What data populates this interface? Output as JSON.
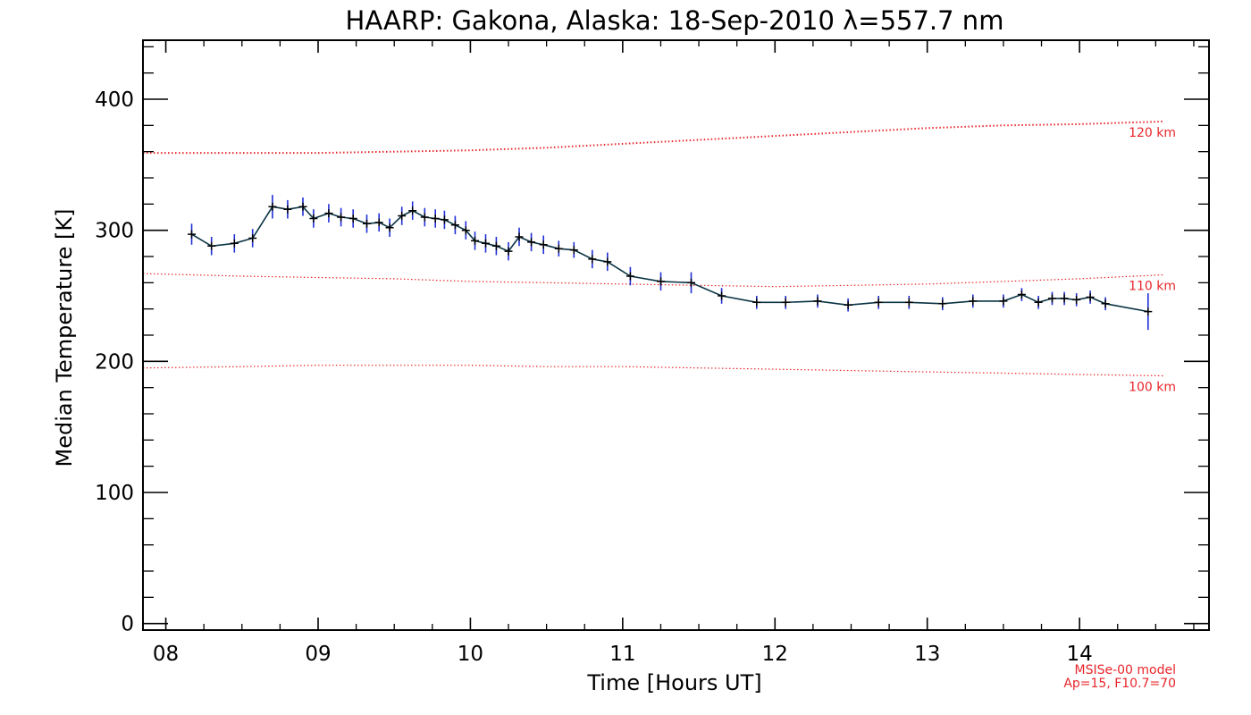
{
  "chart_data": {
    "type": "line",
    "title": "HAARP: Gakona,  Alaska: 18-Sep-2010 λ=557.7 nm",
    "xlabel": "Time [Hours UT]",
    "ylabel": "Median Temperature [K]",
    "xlim": [
      7.85,
      14.85
    ],
    "ylim": [
      -5,
      445
    ],
    "x_ticks": [
      "08",
      "09",
      "10",
      "11",
      "12",
      "13",
      "14"
    ],
    "x_tick_values": [
      8,
      9,
      10,
      11,
      12,
      13,
      14
    ],
    "y_ticks": [
      "0",
      "100",
      "200",
      "300",
      "400"
    ],
    "y_tick_values": [
      0,
      100,
      200,
      300,
      400
    ],
    "grid": false,
    "series": [
      {
        "name": "",
        "color": "#0a3344",
        "errorbar_color": "#1f2fd6",
        "marker": "+",
        "x": [
          8.17,
          8.3,
          8.45,
          8.57,
          8.7,
          8.8,
          8.9,
          8.97,
          9.07,
          9.15,
          9.23,
          9.32,
          9.4,
          9.47,
          9.55,
          9.62,
          9.7,
          9.77,
          9.83,
          9.9,
          9.97,
          10.03,
          10.1,
          10.17,
          10.25,
          10.32,
          10.4,
          10.48,
          10.58,
          10.68,
          10.8,
          10.9,
          11.05,
          11.25,
          11.45,
          11.65,
          11.88,
          12.07,
          12.28,
          12.48,
          12.68,
          12.88,
          13.1,
          13.3,
          13.5,
          13.62,
          13.73,
          13.82,
          13.9,
          13.98,
          14.07,
          14.17,
          14.45
        ],
        "y": [
          297,
          288,
          290,
          294,
          318,
          316,
          318,
          309,
          313,
          310,
          309,
          305,
          306,
          302,
          311,
          315,
          310,
          309,
          308,
          304,
          300,
          292,
          290,
          288,
          284,
          295,
          291,
          289,
          286,
          285,
          278,
          276,
          265,
          261,
          260,
          250,
          245,
          245,
          246,
          243,
          245,
          245,
          244,
          246,
          246,
          251,
          245,
          248,
          248,
          247,
          249,
          244,
          238
        ],
        "err": [
          8,
          7,
          7,
          7,
          9,
          7,
          7,
          7,
          7,
          7,
          7,
          7,
          7,
          7,
          7,
          7,
          7,
          7,
          7,
          7,
          7,
          7,
          7,
          7,
          7,
          7,
          7,
          7,
          6,
          6,
          7,
          7,
          7,
          7,
          8,
          6,
          5,
          5,
          5,
          5,
          5,
          5,
          5,
          5,
          5,
          5,
          5,
          5,
          5,
          5,
          5,
          5,
          14
        ]
      }
    ],
    "model_curves": [
      {
        "label": "120 km",
        "color": "#e8262b",
        "x": [
          7.85,
          8.5,
          9.0,
          9.5,
          10.0,
          10.5,
          11.0,
          11.5,
          12.0,
          12.5,
          13.0,
          13.5,
          14.0,
          14.55
        ],
        "y": [
          359,
          359,
          359,
          360,
          361,
          363,
          366,
          369,
          372,
          375,
          378,
          380,
          381,
          383
        ]
      },
      {
        "label": "110 km",
        "color": "#e8262b",
        "x": [
          7.85,
          8.5,
          9.0,
          9.5,
          10.0,
          10.5,
          11.0,
          11.5,
          12.0,
          12.5,
          13.0,
          13.5,
          14.0,
          14.55
        ],
        "y": [
          267,
          265,
          264,
          263,
          261,
          260,
          259,
          258,
          257,
          258,
          259,
          261,
          263,
          266
        ]
      },
      {
        "label": "100 km",
        "color": "#e8262b",
        "x": [
          7.85,
          8.5,
          9.0,
          9.5,
          10.0,
          10.5,
          11.0,
          11.5,
          12.0,
          12.5,
          13.0,
          13.5,
          14.0,
          14.55
        ],
        "y": [
          195,
          196,
          197,
          197,
          197,
          196,
          196,
          195,
          194,
          193,
          192,
          191,
          190,
          189
        ]
      }
    ],
    "annotations": {
      "model_line1": "MSISe-00 model",
      "model_line2": "Ap=15, F10.7=70"
    }
  }
}
